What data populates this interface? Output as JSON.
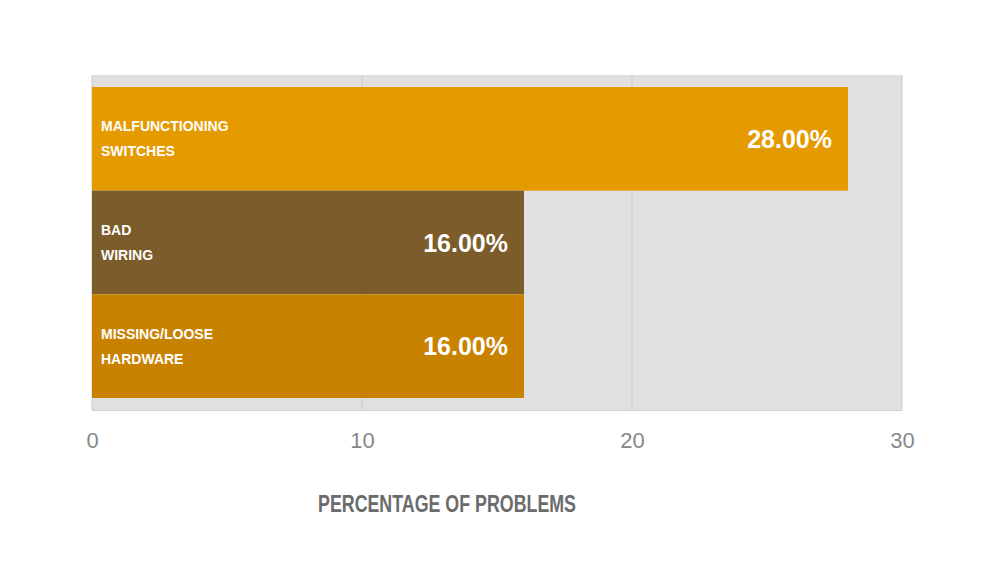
{
  "chart_data": {
    "type": "bar",
    "orientation": "horizontal",
    "x_label": "PERCENTAGE OF PROBLEMS",
    "categories": [
      "MALFUNCTIONING SWITCHES",
      "BAD WIRING",
      "MISSING/LOOSE HARDWARE"
    ],
    "values": [
      28,
      16,
      16
    ],
    "value_labels": [
      "28.00%",
      "16.00%",
      "16.00%"
    ],
    "colors": [
      "#e59a00",
      "#7b5c2a",
      "#c98200"
    ],
    "xlim": [
      0,
      30
    ],
    "xticks": [
      0,
      10,
      20,
      30
    ],
    "grid": true,
    "data_labels": true
  }
}
